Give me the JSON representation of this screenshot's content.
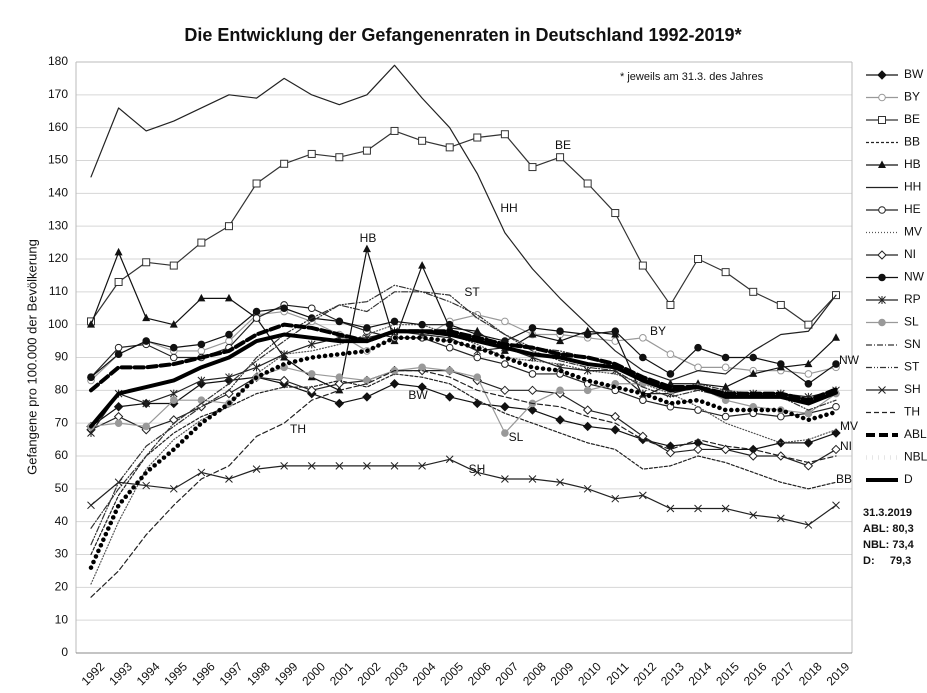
{
  "chart_data": {
    "type": "line",
    "title": "Die Entwicklung der Gefangenenraten in Deutschland 1992-2019*",
    "y_label": "Gefangene pro 100.000 der Bevölkerung",
    "note": "* jeweils am 31.3. des Jahres",
    "categories": [
      "1992",
      "1993",
      "1994",
      "1995",
      "1996",
      "1997",
      "1998",
      "1999",
      "2000",
      "2001",
      "2002",
      "2003",
      "2004",
      "2005",
      "2006",
      "2007",
      "2008",
      "2009",
      "2010",
      "2011",
      "2012",
      "2013",
      "2014",
      "2015",
      "2016",
      "2017",
      "2018",
      "2019"
    ],
    "ylim": [
      0,
      180
    ],
    "yticks": [
      0,
      10,
      20,
      30,
      40,
      50,
      60,
      70,
      80,
      90,
      100,
      110,
      120,
      130,
      140,
      150,
      160,
      170,
      180
    ],
    "grid": true,
    "series": [
      {
        "name": "BW",
        "color": "#111111",
        "marker": "diamond-filled",
        "dash": "none",
        "width": 1.2,
        "values": [
          69,
          75,
          76,
          76,
          82,
          83,
          84,
          82,
          79,
          76,
          78,
          82,
          81,
          78,
          76,
          75,
          74,
          71,
          69,
          68,
          65,
          63,
          64,
          62,
          62,
          64,
          64,
          67
        ]
      },
      {
        "name": "BY",
        "color": "#999999",
        "marker": "circle-open",
        "dash": "none",
        "width": 1.2,
        "values": [
          83,
          91,
          95,
          92,
          92,
          95,
          103,
          104,
          101,
          97,
          92,
          96,
          96,
          101,
          103,
          101,
          97,
          97,
          96,
          95,
          96,
          91,
          87,
          87,
          86,
          86,
          85,
          87
        ]
      },
      {
        "name": "BE",
        "color": "#333333",
        "marker": "square-open",
        "dash": "none",
        "width": 1.2,
        "values": [
          101,
          113,
          119,
          118,
          125,
          130,
          143,
          149,
          152,
          151,
          153,
          159,
          156,
          154,
          157,
          158,
          148,
          151,
          143,
          134,
          118,
          106,
          120,
          116,
          110,
          106,
          100,
          109
        ]
      },
      {
        "name": "BB",
        "color": "#222222",
        "marker": "none",
        "dash": "3,2",
        "width": 1.2,
        "values": [
          30,
          48,
          60,
          67,
          72,
          75,
          79,
          81,
          81,
          83,
          81,
          85,
          84,
          82,
          77,
          73,
          70,
          67,
          64,
          62,
          56,
          57,
          60,
          58,
          55,
          52,
          50,
          52
        ]
      },
      {
        "name": "HB",
        "color": "#111111",
        "marker": "triangle-filled",
        "dash": "none",
        "width": 1.2,
        "values": [
          100,
          122,
          102,
          100,
          108,
          108,
          102,
          90,
          84,
          80,
          123,
          95,
          118,
          99,
          98,
          92,
          97,
          95,
          98,
          97,
          78,
          82,
          82,
          81,
          85,
          87,
          88,
          96
        ]
      },
      {
        "name": "HH",
        "color": "#222222",
        "marker": "none",
        "dash": "none",
        "width": 1.2,
        "values": [
          145,
          166,
          159,
          162,
          166,
          170,
          169,
          175,
          170,
          167,
          170,
          179,
          169,
          160,
          146,
          128,
          117,
          108,
          100,
          92,
          86,
          83,
          86,
          85,
          92,
          97,
          98,
          109
        ]
      },
      {
        "name": "HE",
        "color": "#222222",
        "marker": "circle-open",
        "dash": "none",
        "width": 1.2,
        "values": [
          84,
          93,
          94,
          90,
          90,
          93,
          102,
          106,
          105,
          101,
          98,
          96,
          96,
          93,
          90,
          88,
          85,
          85,
          82,
          80,
          77,
          75,
          74,
          72,
          73,
          72,
          73,
          75
        ]
      },
      {
        "name": "MV",
        "color": "#555555",
        "marker": "none",
        "dash": "1,2",
        "width": 1.2,
        "values": [
          21,
          40,
          56,
          65,
          71,
          75,
          85,
          91,
          92,
          94,
          97,
          100,
          100,
          97,
          94,
          90,
          89,
          88,
          86,
          85,
          82,
          79,
          75,
          70,
          67,
          64,
          65,
          68
        ]
      },
      {
        "name": "NI",
        "color": "#222222",
        "marker": "diamond-open",
        "dash": "none",
        "width": 1.2,
        "values": [
          68,
          72,
          68,
          71,
          75,
          79,
          84,
          83,
          80,
          82,
          83,
          86,
          86,
          86,
          83,
          80,
          80,
          79,
          74,
          72,
          66,
          61,
          62,
          62,
          60,
          60,
          57,
          62
        ]
      },
      {
        "name": "NW",
        "color": "#111111",
        "marker": "circle-filled",
        "dash": "none",
        "width": 1.2,
        "values": [
          84,
          91,
          95,
          93,
          94,
          97,
          104,
          105,
          102,
          101,
          99,
          101,
          100,
          100,
          97,
          95,
          99,
          98,
          97,
          98,
          90,
          85,
          93,
          90,
          90,
          88,
          82,
          88
        ]
      },
      {
        "name": "RP",
        "color": "#222222",
        "marker": "asterisk",
        "dash": "none",
        "width": 1.2,
        "values": [
          67,
          79,
          76,
          79,
          83,
          84,
          87,
          91,
          94,
          96,
          96,
          98,
          97,
          96,
          92,
          93,
          90,
          87,
          86,
          86,
          79,
          79,
          81,
          79,
          79,
          79,
          78,
          80
        ]
      },
      {
        "name": "SL",
        "color": "#999999",
        "marker": "circle-gray",
        "dash": "none",
        "width": 1.2,
        "values": [
          69,
          70,
          69,
          77,
          77,
          76,
          84,
          87,
          85,
          84,
          83,
          86,
          87,
          86,
          84,
          67,
          76,
          80,
          80,
          82,
          82,
          80,
          81,
          77,
          75,
          74,
          73,
          79
        ]
      },
      {
        "name": "SN",
        "color": "#333333",
        "marker": "none",
        "dash": "6,2,1,2",
        "width": 1.2,
        "values": [
          38,
          50,
          60,
          70,
          76,
          82,
          89,
          95,
          101,
          106,
          104,
          110,
          110,
          109,
          102,
          97,
          92,
          89,
          87,
          86,
          81,
          78,
          80,
          78,
          78,
          78,
          76,
          79
        ]
      },
      {
        "name": "ST",
        "color": "#333333",
        "marker": "none",
        "dash": "6,2,1,2,1,2",
        "width": 1.2,
        "values": [
          33,
          52,
          63,
          69,
          75,
          80,
          90,
          97,
          102,
          106,
          107,
          112,
          110,
          107,
          103,
          97,
          93,
          92,
          90,
          87,
          83,
          80,
          82,
          80,
          79,
          78,
          74,
          77
        ]
      },
      {
        "name": "SH",
        "color": "#222222",
        "marker": "cross",
        "dash": "none",
        "width": 1.2,
        "values": [
          45,
          52,
          51,
          50,
          55,
          53,
          56,
          57,
          57,
          57,
          57,
          57,
          57,
          59,
          55,
          53,
          53,
          52,
          50,
          47,
          48,
          44,
          44,
          44,
          42,
          41,
          39,
          45
        ]
      },
      {
        "name": "TH",
        "color": "#222222",
        "marker": "none",
        "dash": "5,3",
        "width": 1.2,
        "values": [
          17,
          25,
          36,
          45,
          53,
          57,
          66,
          70,
          77,
          80,
          82,
          86,
          86,
          84,
          80,
          78,
          76,
          75,
          72,
          70,
          65,
          62,
          65,
          63,
          62,
          60,
          58,
          60
        ]
      },
      {
        "name": "ABL",
        "color": "#000000",
        "marker": "none",
        "dash": "9,4",
        "width": 4,
        "values": [
          80,
          87,
          87,
          88,
          90,
          92,
          97,
          100,
          99,
          97,
          95,
          98,
          98,
          98,
          96,
          94,
          93,
          91,
          90,
          88,
          84,
          81,
          81,
          79,
          79,
          79,
          77,
          80.3
        ]
      },
      {
        "name": "NBL",
        "color": "#000000",
        "marker": "none",
        "dash": "0.1,6",
        "width": 4.5,
        "values": [
          26,
          45,
          55,
          62,
          70,
          76,
          84,
          88,
          90,
          91,
          92,
          96,
          96,
          95,
          93,
          90,
          87,
          86,
          83,
          81,
          79,
          76,
          77,
          74,
          74,
          74,
          71,
          73.4
        ]
      },
      {
        "name": "D",
        "color": "#000000",
        "marker": "none",
        "dash": "none",
        "width": 4,
        "values": [
          69,
          79,
          81,
          83,
          87,
          90,
          95,
          97,
          96,
          95,
          95,
          98,
          98,
          97,
          95,
          93,
          91,
          90,
          88,
          87,
          83,
          80,
          81,
          78,
          78,
          78,
          76,
          79.3
        ]
      }
    ],
    "line_labels": [
      "BE",
      "HH",
      "HB",
      "ST",
      "BY",
      "BW",
      "SL",
      "TH",
      "SH",
      "NW",
      "MV",
      "NI",
      "BB"
    ],
    "summary": [
      "31.3.2019",
      "ABL: 80,3",
      "NBL: 73,4",
      "D:     79,3"
    ]
  }
}
